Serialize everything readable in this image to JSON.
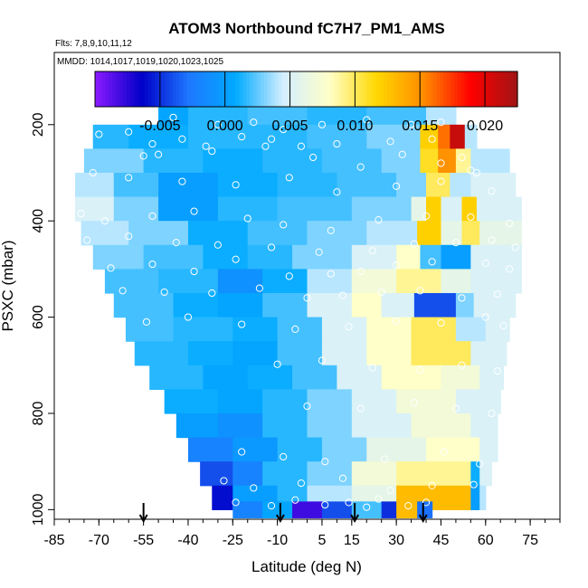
{
  "chart_data": {
    "type": "heatmap",
    "title": "ATOM3 Northbound fC7H7_PM1_AMS",
    "subtitle_flights": "Flts: 7,8,9,10,11,12",
    "subtitle_dates": "MMDD: 1014,1017,1019,1020,1023,1025",
    "xlabel": "Latitude (deg N)",
    "ylabel": "PSXC (mbar)",
    "xlim": [
      -85,
      85
    ],
    "ylim": [
      1020,
      50
    ],
    "x_ticks": [
      -85,
      -70,
      -55,
      -40,
      -25,
      -10,
      5,
      15,
      30,
      45,
      60,
      75
    ],
    "x_minor_step": 5,
    "y_ticks": [
      200,
      400,
      600,
      800,
      1000
    ],
    "colorbar": {
      "range": [
        -0.01,
        0.0225
      ],
      "ticks": [
        -0.005,
        0.0,
        0.005,
        0.01,
        0.015,
        0.02
      ],
      "tick_labels": [
        "-0.005",
        "0.000",
        "0.005",
        "0.010",
        "0.015",
        "0.020"
      ],
      "colors": [
        "#8c1aff",
        "#0000c8",
        "#1e78ff",
        "#00aaff",
        "#d2eeff",
        "#ffffc8",
        "#ffd700",
        "#ff8c00",
        "#ff0000",
        "#a01414"
      ]
    },
    "arrows_latitude": [
      -55,
      -9,
      16,
      39
    ],
    "rows": [
      {
        "p": 175,
        "x0": -50,
        "x1": 50,
        "segs": [
          [
            -50,
            -40,
            0.0005
          ],
          [
            -40,
            -20,
            0.0015
          ],
          [
            -20,
            0,
            0.002
          ],
          [
            0,
            20,
            0.0015
          ],
          [
            20,
            40,
            0.002
          ],
          [
            40,
            50,
            0.004
          ]
        ]
      },
      {
        "p": 225,
        "x0": -72,
        "x1": 57,
        "segs": [
          [
            -72,
            -60,
            0.0015
          ],
          [
            -60,
            -40,
            0.001
          ],
          [
            -40,
            -20,
            0.0015
          ],
          [
            -20,
            0,
            0.0015
          ],
          [
            0,
            20,
            0.002
          ],
          [
            20,
            38,
            0.003
          ],
          [
            38,
            44,
            0.012
          ],
          [
            44,
            48,
            0.016
          ],
          [
            48,
            53,
            0.021
          ],
          [
            53,
            57,
            0.004
          ]
        ]
      },
      {
        "p": 275,
        "x0": -75,
        "x1": 68,
        "segs": [
          [
            -75,
            -55,
            0.003
          ],
          [
            -55,
            -35,
            0.0015
          ],
          [
            -35,
            -15,
            0.001
          ],
          [
            -15,
            5,
            0.0015
          ],
          [
            5,
            25,
            0.002
          ],
          [
            25,
            38,
            0.003
          ],
          [
            38,
            44,
            0.011
          ],
          [
            44,
            50,
            0.015
          ],
          [
            50,
            55,
            0.009
          ],
          [
            55,
            68,
            0.004
          ]
        ]
      },
      {
        "p": 325,
        "x0": -78,
        "x1": 70,
        "segs": [
          [
            -78,
            -65,
            0.004
          ],
          [
            -65,
            -50,
            0.002
          ],
          [
            -50,
            -30,
            0.0
          ],
          [
            -30,
            -10,
            0.001
          ],
          [
            -10,
            10,
            0.0015
          ],
          [
            10,
            30,
            0.002
          ],
          [
            30,
            40,
            0.003
          ],
          [
            40,
            48,
            0.01
          ],
          [
            48,
            55,
            0.004
          ],
          [
            55,
            70,
            0.005
          ]
        ]
      },
      {
        "p": 375,
        "x0": -78,
        "x1": 72,
        "segs": [
          [
            -78,
            -65,
            0.005
          ],
          [
            -65,
            -50,
            0.003
          ],
          [
            -50,
            -30,
            0.0
          ],
          [
            -30,
            -10,
            0.0015
          ],
          [
            -10,
            15,
            0.002
          ],
          [
            15,
            35,
            0.003
          ],
          [
            35,
            40,
            0.006
          ],
          [
            40,
            45,
            0.012
          ],
          [
            45,
            52,
            0.005
          ],
          [
            52,
            57,
            0.012
          ],
          [
            57,
            72,
            0.005
          ]
        ]
      },
      {
        "p": 425,
        "x0": -76,
        "x1": 72,
        "segs": [
          [
            -76,
            -60,
            0.004
          ],
          [
            -60,
            -40,
            0.003
          ],
          [
            -40,
            -20,
            0.001
          ],
          [
            -20,
            0,
            0.002
          ],
          [
            0,
            20,
            0.003
          ],
          [
            20,
            37,
            0.004
          ],
          [
            37,
            45,
            0.012
          ],
          [
            45,
            52,
            0.006
          ],
          [
            52,
            58,
            0.01
          ],
          [
            58,
            72,
            0.006
          ]
        ]
      },
      {
        "p": 475,
        "x0": -72,
        "x1": 72,
        "segs": [
          [
            -72,
            -55,
            0.003
          ],
          [
            -55,
            -35,
            0.002
          ],
          [
            -35,
            -20,
            0.001
          ],
          [
            -20,
            -5,
            0.0015
          ],
          [
            -5,
            15,
            0.003
          ],
          [
            15,
            30,
            0.005
          ],
          [
            30,
            38,
            0.008
          ],
          [
            38,
            45,
            0.002
          ],
          [
            45,
            55,
            0.0
          ],
          [
            55,
            72,
            0.005
          ]
        ]
      },
      {
        "p": 525,
        "x0": -68,
        "x1": 72,
        "segs": [
          [
            -68,
            -50,
            0.002
          ],
          [
            -50,
            -30,
            0.0015
          ],
          [
            -30,
            -15,
            -0.001
          ],
          [
            -15,
            0,
            0.001
          ],
          [
            0,
            15,
            0.004
          ],
          [
            15,
            30,
            0.007
          ],
          [
            30,
            45,
            0.009
          ],
          [
            45,
            55,
            0.006
          ],
          [
            55,
            72,
            0.005
          ]
        ]
      },
      {
        "p": 575,
        "x0": -65,
        "x1": 70,
        "segs": [
          [
            -65,
            -45,
            0.002
          ],
          [
            -45,
            -30,
            0.001
          ],
          [
            -30,
            -15,
            0.0005
          ],
          [
            -15,
            0,
            0.002
          ],
          [
            0,
            15,
            0.005
          ],
          [
            15,
            25,
            0.008
          ],
          [
            25,
            36,
            0.005
          ],
          [
            36,
            50,
            -0.004
          ],
          [
            50,
            56,
            0.003
          ],
          [
            56,
            70,
            0.005
          ]
        ]
      },
      {
        "p": 625,
        "x0": -61,
        "x1": 68,
        "segs": [
          [
            -61,
            -45,
            0.002
          ],
          [
            -45,
            -25,
            0.0015
          ],
          [
            -25,
            -10,
            0.001
          ],
          [
            -10,
            5,
            0.002
          ],
          [
            5,
            20,
            0.005
          ],
          [
            20,
            35,
            0.008
          ],
          [
            35,
            50,
            0.01
          ],
          [
            50,
            60,
            0.004
          ],
          [
            60,
            68,
            0.005
          ]
        ]
      },
      {
        "p": 675,
        "x0": -58,
        "x1": 67,
        "segs": [
          [
            -58,
            -40,
            0.0015
          ],
          [
            -40,
            -25,
            0.001
          ],
          [
            -25,
            -10,
            0.0005
          ],
          [
            -10,
            5,
            0.002
          ],
          [
            5,
            20,
            0.005
          ],
          [
            20,
            35,
            0.008
          ],
          [
            35,
            55,
            0.01
          ],
          [
            55,
            67,
            0.005
          ]
        ]
      },
      {
        "p": 725,
        "x0": -53,
        "x1": 66,
        "segs": [
          [
            -53,
            -35,
            0.0015
          ],
          [
            -35,
            -20,
            0.0005
          ],
          [
            -20,
            -5,
            0.001
          ],
          [
            -5,
            10,
            0.002
          ],
          [
            10,
            25,
            0.005
          ],
          [
            25,
            45,
            0.008
          ],
          [
            45,
            58,
            0.007
          ],
          [
            58,
            66,
            0.005
          ]
        ]
      },
      {
        "p": 775,
        "x0": -48,
        "x1": 65,
        "segs": [
          [
            -48,
            -30,
            0.001
          ],
          [
            -30,
            -15,
            0.0005
          ],
          [
            -15,
            0,
            0.0015
          ],
          [
            0,
            15,
            0.003
          ],
          [
            15,
            30,
            0.005
          ],
          [
            30,
            50,
            0.007
          ],
          [
            50,
            65,
            0.005
          ]
        ]
      },
      {
        "p": 825,
        "x0": -44,
        "x1": 64,
        "segs": [
          [
            -44,
            -30,
            0.0
          ],
          [
            -30,
            -15,
            -0.001
          ],
          [
            -15,
            0,
            0.0015
          ],
          [
            0,
            15,
            0.003
          ],
          [
            15,
            35,
            0.005
          ],
          [
            35,
            55,
            0.007
          ],
          [
            55,
            64,
            0.005
          ]
        ]
      },
      {
        "p": 875,
        "x0": -40,
        "x1": 64,
        "segs": [
          [
            -40,
            -25,
            -0.002
          ],
          [
            -25,
            -10,
            -0.0005
          ],
          [
            -10,
            5,
            0.0015
          ],
          [
            5,
            20,
            0.003
          ],
          [
            20,
            40,
            0.006
          ],
          [
            40,
            58,
            0.008
          ],
          [
            58,
            64,
            0.005
          ]
        ]
      },
      {
        "p": 925,
        "x0": -36,
        "x1": 62,
        "segs": [
          [
            -36,
            -25,
            -0.004
          ],
          [
            -25,
            -15,
            -0.002
          ],
          [
            -15,
            0,
            0.0015
          ],
          [
            0,
            15,
            0.003
          ],
          [
            15,
            30,
            0.007
          ],
          [
            30,
            55,
            0.009
          ],
          [
            55,
            58,
            0.001
          ],
          [
            58,
            62,
            0.005
          ]
        ]
      },
      {
        "p": 975,
        "x0": -32,
        "x1": 60,
        "segs": [
          [
            -32,
            -25,
            -0.006
          ],
          [
            -25,
            -10,
            0.0
          ],
          [
            -10,
            0,
            0.0015
          ],
          [
            0,
            15,
            0.004
          ],
          [
            15,
            30,
            0.006
          ],
          [
            30,
            55,
            0.013
          ],
          [
            55,
            58,
            0.0
          ],
          [
            58,
            60,
            0.004
          ]
        ]
      },
      {
        "p": 1000,
        "x0": -25,
        "x1": 42,
        "segs": [
          [
            -25,
            -15,
            -0.002
          ],
          [
            -15,
            -5,
            0.0005
          ],
          [
            -5,
            5,
            -0.008
          ],
          [
            5,
            15,
            -0.004
          ],
          [
            15,
            25,
            0.002
          ],
          [
            25,
            30,
            -0.005
          ],
          [
            30,
            37,
            0.013
          ],
          [
            37,
            42,
            -0.003
          ]
        ]
      }
    ],
    "points": [
      [
        -45,
        185
      ],
      [
        -30,
        200
      ],
      [
        -18,
        195
      ],
      [
        -8,
        210
      ],
      [
        5,
        200
      ],
      [
        20,
        190
      ],
      [
        35,
        200
      ],
      [
        45,
        195
      ],
      [
        -70,
        220
      ],
      [
        -60,
        215
      ],
      [
        -52,
        240
      ],
      [
        -42,
        230
      ],
      [
        -34,
        245
      ],
      [
        -22,
        225
      ],
      [
        -12,
        230
      ],
      [
        -2,
        245
      ],
      [
        10,
        240
      ],
      [
        28,
        235
      ],
      [
        42,
        230
      ],
      [
        -55,
        265
      ],
      [
        -50,
        262
      ],
      [
        -32,
        255
      ],
      [
        -14,
        245
      ],
      [
        2,
        268
      ],
      [
        18,
        288
      ],
      [
        32,
        262
      ],
      [
        45,
        280
      ],
      [
        52,
        268
      ],
      [
        55,
        295
      ],
      [
        -72,
        300
      ],
      [
        -60,
        310
      ],
      [
        -42,
        318
      ],
      [
        -24,
        325
      ],
      [
        -6,
        310
      ],
      [
        10,
        340
      ],
      [
        30,
        328
      ],
      [
        45,
        318
      ],
      [
        57,
        300
      ],
      [
        62,
        338
      ],
      [
        -76,
        385
      ],
      [
        -68,
        400
      ],
      [
        -52,
        390
      ],
      [
        -38,
        380
      ],
      [
        -20,
        395
      ],
      [
        -8,
        408
      ],
      [
        8,
        420
      ],
      [
        24,
        398
      ],
      [
        40,
        390
      ],
      [
        55,
        392
      ],
      [
        68,
        405
      ],
      [
        -74,
        440
      ],
      [
        -60,
        432
      ],
      [
        -44,
        445
      ],
      [
        -30,
        450
      ],
      [
        -12,
        455
      ],
      [
        4,
        465
      ],
      [
        22,
        462
      ],
      [
        36,
        448
      ],
      [
        50,
        445
      ],
      [
        62,
        440
      ],
      [
        70,
        455
      ],
      [
        -66,
        498
      ],
      [
        -52,
        490
      ],
      [
        -38,
        505
      ],
      [
        -24,
        480
      ],
      [
        -6,
        515
      ],
      [
        8,
        510
      ],
      [
        18,
        505
      ],
      [
        30,
        492
      ],
      [
        42,
        485
      ],
      [
        60,
        488
      ],
      [
        68,
        500
      ],
      [
        -62,
        545
      ],
      [
        -48,
        548
      ],
      [
        -32,
        550
      ],
      [
        -16,
        540
      ],
      [
        0,
        560
      ],
      [
        12,
        555
      ],
      [
        25,
        548
      ],
      [
        38,
        545
      ],
      [
        52,
        560
      ],
      [
        64,
        552
      ],
      [
        -54,
        610
      ],
      [
        -40,
        600
      ],
      [
        -22,
        615
      ],
      [
        -4,
        625
      ],
      [
        14,
        620
      ],
      [
        30,
        608
      ],
      [
        45,
        612
      ],
      [
        60,
        600
      ],
      [
        66,
        618
      ],
      [
        -10,
        698
      ],
      [
        5,
        690
      ],
      [
        22,
        705
      ],
      [
        38,
        710
      ],
      [
        52,
        700
      ],
      [
        64,
        712
      ],
      [
        0,
        785
      ],
      [
        18,
        790
      ],
      [
        36,
        778
      ],
      [
        50,
        790
      ],
      [
        62,
        800
      ],
      [
        -22,
        880
      ],
      [
        -8,
        890
      ],
      [
        6,
        900
      ],
      [
        26,
        895
      ],
      [
        46,
        880
      ],
      [
        58,
        905
      ],
      [
        -28,
        940
      ],
      [
        -18,
        955
      ],
      [
        -2,
        945
      ],
      [
        12,
        935
      ],
      [
        28,
        960
      ],
      [
        42,
        950
      ],
      [
        56,
        948
      ],
      [
        -24,
        985
      ],
      [
        -12,
        992
      ],
      [
        -4,
        980
      ],
      [
        6,
        990
      ],
      [
        14,
        985
      ],
      [
        20,
        995
      ],
      [
        24,
        978
      ],
      [
        34,
        992
      ],
      [
        40,
        985
      ]
    ]
  }
}
